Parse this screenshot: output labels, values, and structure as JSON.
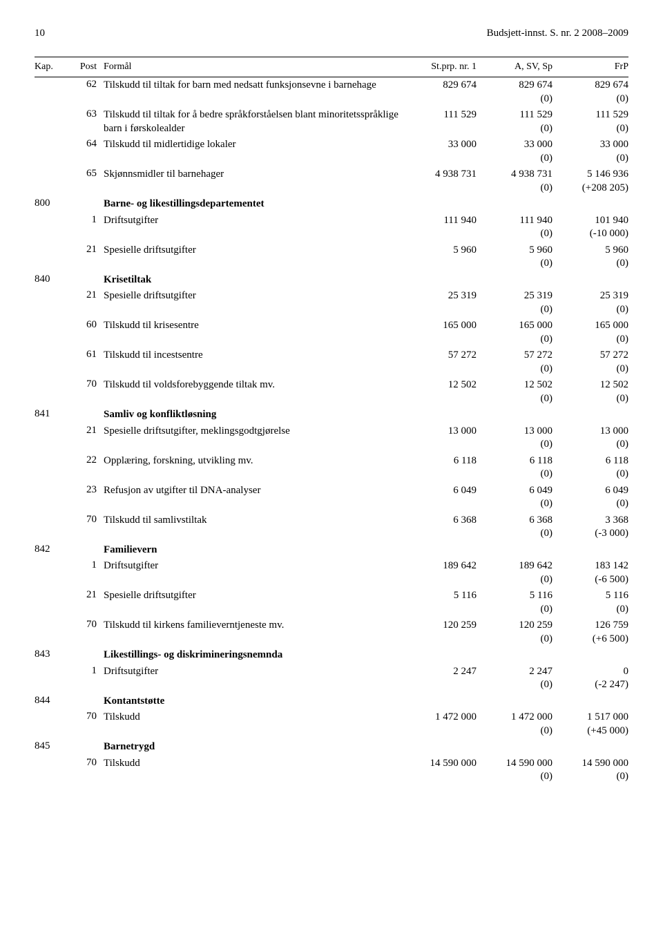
{
  "header": {
    "page_number": "10",
    "doc_title": "Budsjett-innst. S. nr. 2 2008–2009"
  },
  "columns": {
    "kap": "Kap.",
    "post": "Post",
    "formaal": "Formål",
    "stprp": "St.prp. nr. 1",
    "asvsp": "A, SV, Sp",
    "frp": "FrP"
  },
  "rows": [
    {
      "kap": "",
      "post": "62",
      "formaal": "Tilskudd til tiltak for barn med nedsatt funksjonsevne i barnehage",
      "c1": "829 674",
      "c1s": "",
      "c2": "829 674",
      "c2s": "(0)",
      "c3": "829 674",
      "c3s": "(0)"
    },
    {
      "kap": "",
      "post": "63",
      "formaal": "Tilskudd til tiltak for å bedre språkforståelsen blant minoritetsspråklige barn i førskolealder",
      "c1": "111 529",
      "c1s": "",
      "c2": "111 529",
      "c2s": "(0)",
      "c3": "111 529",
      "c3s": "(0)"
    },
    {
      "kap": "",
      "post": "64",
      "formaal": "Tilskudd til midlertidige lokaler",
      "c1": "33 000",
      "c1s": "",
      "c2": "33 000",
      "c2s": "(0)",
      "c3": "33 000",
      "c3s": "(0)"
    },
    {
      "kap": "",
      "post": "65",
      "formaal": "Skjønnsmidler til barnehager",
      "c1": "4 938 731",
      "c1s": "",
      "c2": "4 938 731",
      "c2s": "(0)",
      "c3": "5 146 936",
      "c3s": "(+208 205)"
    },
    {
      "kap": "800",
      "post": "",
      "formaal": "Barne- og likestillingsdepartementet",
      "section": true
    },
    {
      "kap": "",
      "post": "1",
      "formaal": "Driftsutgifter",
      "c1": "111 940",
      "c1s": "",
      "c2": "111 940",
      "c2s": "(0)",
      "c3": "101 940",
      "c3s": "(-10 000)"
    },
    {
      "kap": "",
      "post": "21",
      "formaal": "Spesielle driftsutgifter",
      "c1": "5 960",
      "c1s": "",
      "c2": "5 960",
      "c2s": "(0)",
      "c3": "5 960",
      "c3s": "(0)"
    },
    {
      "kap": "840",
      "post": "",
      "formaal": "Krisetiltak",
      "section": true
    },
    {
      "kap": "",
      "post": "21",
      "formaal": "Spesielle driftsutgifter",
      "c1": "25 319",
      "c1s": "",
      "c2": "25 319",
      "c2s": "(0)",
      "c3": "25 319",
      "c3s": "(0)"
    },
    {
      "kap": "",
      "post": "60",
      "formaal": "Tilskudd til krisesentre",
      "c1": "165 000",
      "c1s": "",
      "c2": "165 000",
      "c2s": "(0)",
      "c3": "165 000",
      "c3s": "(0)"
    },
    {
      "kap": "",
      "post": "61",
      "formaal": "Tilskudd til incestsentre",
      "c1": "57 272",
      "c1s": "",
      "c2": "57 272",
      "c2s": "(0)",
      "c3": "57 272",
      "c3s": "(0)"
    },
    {
      "kap": "",
      "post": "70",
      "formaal": "Tilskudd til voldsforebyggende tiltak mv.",
      "c1": "12 502",
      "c1s": "",
      "c2": "12 502",
      "c2s": "(0)",
      "c3": "12 502",
      "c3s": "(0)"
    },
    {
      "kap": "841",
      "post": "",
      "formaal": "Samliv og konfliktløsning",
      "section": true
    },
    {
      "kap": "",
      "post": "21",
      "formaal": "Spesielle driftsutgifter, meklingsgodtgjørelse",
      "c1": "13 000",
      "c1s": "",
      "c2": "13 000",
      "c2s": "(0)",
      "c3": "13 000",
      "c3s": "(0)"
    },
    {
      "kap": "",
      "post": "22",
      "formaal": "Opplæring, forskning, utvikling mv.",
      "c1": "6 118",
      "c1s": "",
      "c2": "6 118",
      "c2s": "(0)",
      "c3": "6 118",
      "c3s": "(0)"
    },
    {
      "kap": "",
      "post": "23",
      "formaal": "Refusjon av utgifter til DNA-analyser",
      "c1": "6 049",
      "c1s": "",
      "c2": "6 049",
      "c2s": "(0)",
      "c3": "6 049",
      "c3s": "(0)"
    },
    {
      "kap": "",
      "post": "70",
      "formaal": "Tilskudd til samlivstiltak",
      "c1": "6 368",
      "c1s": "",
      "c2": "6 368",
      "c2s": "(0)",
      "c3": "3 368",
      "c3s": "(-3 000)"
    },
    {
      "kap": "842",
      "post": "",
      "formaal": "Familievern",
      "section": true
    },
    {
      "kap": "",
      "post": "1",
      "formaal": "Driftsutgifter",
      "c1": "189 642",
      "c1s": "",
      "c2": "189 642",
      "c2s": "(0)",
      "c3": "183 142",
      "c3s": "(-6 500)"
    },
    {
      "kap": "",
      "post": "21",
      "formaal": "Spesielle driftsutgifter",
      "c1": "5 116",
      "c1s": "",
      "c2": "5 116",
      "c2s": "(0)",
      "c3": "5 116",
      "c3s": "(0)"
    },
    {
      "kap": "",
      "post": "70",
      "formaal": "Tilskudd til kirkens familieverntjeneste mv.",
      "c1": "120 259",
      "c1s": "",
      "c2": "120 259",
      "c2s": "(0)",
      "c3": "126 759",
      "c3s": "(+6 500)"
    },
    {
      "kap": "843",
      "post": "",
      "formaal": "Likestillings- og diskrimineringsnemnda",
      "section": true
    },
    {
      "kap": "",
      "post": "1",
      "formaal": "Driftsutgifter",
      "c1": "2 247",
      "c1s": "",
      "c2": "2 247",
      "c2s": "(0)",
      "c3": "0",
      "c3s": "(-2 247)"
    },
    {
      "kap": "844",
      "post": "",
      "formaal": "Kontantstøtte",
      "section": true
    },
    {
      "kap": "",
      "post": "70",
      "formaal": "Tilskudd",
      "c1": "1 472 000",
      "c1s": "",
      "c2": "1 472 000",
      "c2s": "(0)",
      "c3": "1 517 000",
      "c3s": "(+45 000)"
    },
    {
      "kap": "845",
      "post": "",
      "formaal": "Barnetrygd",
      "section": true
    },
    {
      "kap": "",
      "post": "70",
      "formaal": "Tilskudd",
      "c1": "14 590 000",
      "c1s": "",
      "c2": "14 590 000",
      "c2s": "(0)",
      "c3": "14 590 000",
      "c3s": "(0)"
    }
  ]
}
